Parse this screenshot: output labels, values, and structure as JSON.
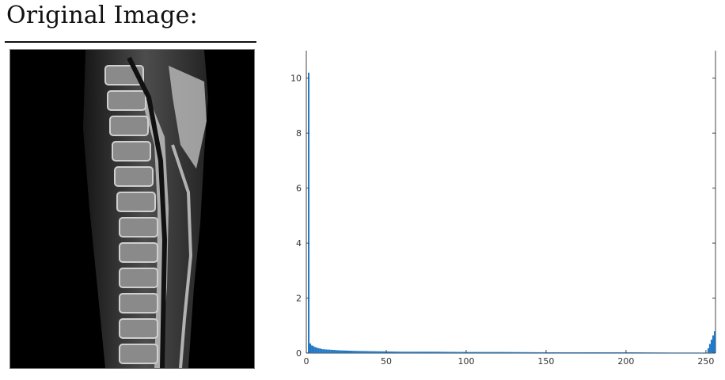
{
  "header": {
    "title": "Original Image:"
  },
  "image": {
    "icon": "mri-spine-scan"
  },
  "chart_data": {
    "type": "bar",
    "title": "",
    "xlabel": "",
    "ylabel": "",
    "xlim": [
      0,
      256
    ],
    "ylim": [
      0,
      11
    ],
    "xticks": [
      0,
      50,
      100,
      150,
      200,
      250
    ],
    "yticks": [
      0,
      2,
      4,
      6,
      8,
      10
    ],
    "grid": false,
    "color": "#1f77c4",
    "series": [
      {
        "x": [
          0,
          1,
          2,
          3,
          4,
          5,
          6,
          7,
          8,
          9,
          10,
          12,
          15,
          20,
          25,
          30,
          40,
          50,
          60,
          80,
          100,
          120,
          150,
          180,
          200,
          230,
          250,
          255
        ],
        "values": [
          0.02,
          10.2,
          0.35,
          0.28,
          0.25,
          0.22,
          0.2,
          0.18,
          0.17,
          0.15,
          0.14,
          0.13,
          0.12,
          0.1,
          0.09,
          0.08,
          0.07,
          0.06,
          0.05,
          0.05,
          0.04,
          0.04,
          0.03,
          0.03,
          0.03,
          0.02,
          0.02,
          0.8
        ]
      }
    ]
  }
}
